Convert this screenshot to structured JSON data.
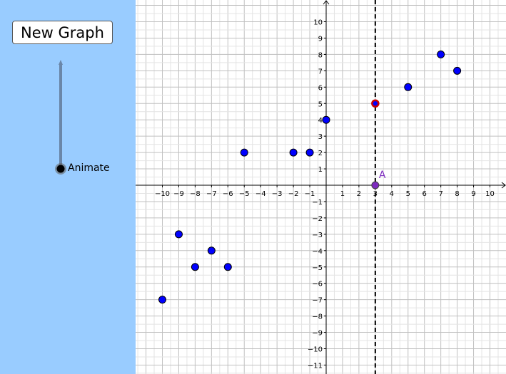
{
  "left_panel": {
    "new_graph_button_label": "New Graph",
    "slider": {
      "label": "Animate",
      "value": 0
    },
    "background": "#99ccff"
  },
  "chart_data": {
    "type": "scatter",
    "xlim": [
      -11,
      10.5
    ],
    "ylim": [
      -11.5,
      11
    ],
    "grid": true,
    "x_ticks": [
      -10,
      -9,
      -8,
      -7,
      -6,
      -5,
      -4,
      -3,
      -2,
      -1,
      1,
      2,
      3,
      4,
      5,
      6,
      7,
      8,
      9,
      10
    ],
    "y_ticks": [
      -11,
      -10,
      -9,
      -8,
      -7,
      -6,
      -5,
      -4,
      -3,
      -2,
      -1,
      1,
      2,
      3,
      4,
      5,
      6,
      7,
      8,
      9,
      10
    ],
    "series": [
      {
        "points": [
          {
            "x": -10,
            "y": -7
          },
          {
            "x": -9,
            "y": -3
          },
          {
            "x": -8,
            "y": -5
          },
          {
            "x": -7,
            "y": -4
          },
          {
            "x": -6,
            "y": -5
          },
          {
            "x": -5,
            "y": 2
          },
          {
            "x": -2,
            "y": 2
          },
          {
            "x": -1,
            "y": 2
          },
          {
            "x": 0,
            "y": 4
          },
          {
            "x": 5,
            "y": 6
          },
          {
            "x": 7,
            "y": 8
          },
          {
            "x": 8,
            "y": 7
          }
        ],
        "color": "#0000ff"
      }
    ],
    "highlighted_point": {
      "x": 3,
      "y": 5,
      "fill": "#0000ff",
      "ring": "#cc0000"
    },
    "vertical_line": {
      "x": 3,
      "style": "dashed",
      "color": "#000000"
    },
    "point_A": {
      "label": "A",
      "x": 3,
      "y": 0,
      "color": "#7d2bbf"
    }
  }
}
